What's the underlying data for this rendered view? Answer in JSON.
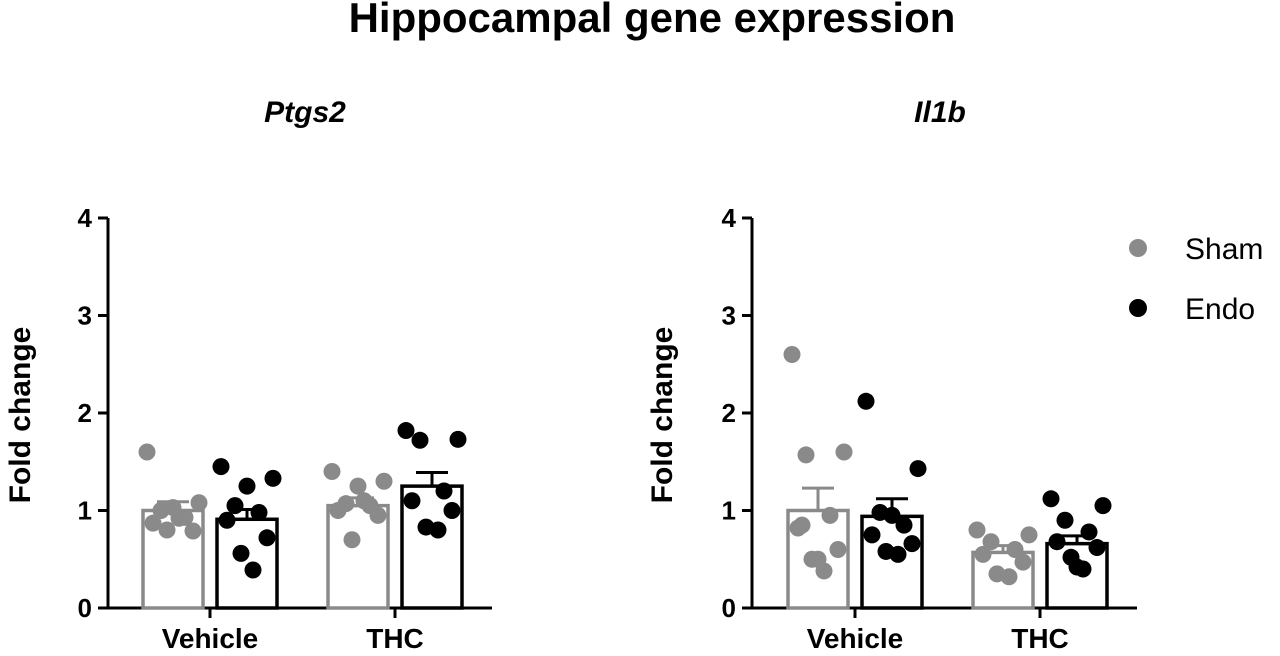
{
  "figure_title": "Hippocampal gene expression",
  "colors": {
    "sham": "#8a8a8a",
    "endo": "#000000"
  },
  "legend": {
    "placement": "top-right",
    "entries": [
      {
        "key": "sham",
        "label": "Sham"
      },
      {
        "key": "endo",
        "label": "Endo"
      }
    ]
  },
  "chart_data": [
    {
      "type": "bar",
      "title": "Ptgs2",
      "ylabel": "Fold change",
      "ylim": [
        0,
        4
      ],
      "yticks": [
        "0",
        "1",
        "2",
        "3",
        "4"
      ],
      "categories": [
        "Vehicle",
        "THC"
      ],
      "grid": false,
      "series": [
        {
          "name": "Sham",
          "key": "sham",
          "values": [
            1.0,
            1.05
          ],
          "sem": [
            0.09,
            0.08
          ],
          "points": [
            [
              1.6,
              1.08,
              1.0,
              0.93,
              0.87,
              0.79,
              0.8,
              0.92,
              1.03
            ],
            [
              1.4,
              1.3,
              1.07,
              1.05,
              1.0,
              0.95,
              0.7,
              1.1,
              1.25
            ]
          ]
        },
        {
          "name": "Endo",
          "key": "endo",
          "values": [
            0.91,
            1.25
          ],
          "sem": [
            0.1,
            0.14
          ],
          "points": [
            [
              1.45,
              1.33,
              1.05,
              0.98,
              0.9,
              0.72,
              0.56,
              0.39,
              1.25
            ],
            [
              1.82,
              1.73,
              1.72,
              1.2,
              1.1,
              1.0,
              0.83,
              0.8
            ]
          ]
        }
      ]
    },
    {
      "type": "bar",
      "title": "Il1b",
      "ylabel": "Fold change",
      "ylim": [
        0,
        4
      ],
      "yticks": [
        "0",
        "1",
        "2",
        "3",
        "4"
      ],
      "categories": [
        "Vehicle",
        "THC"
      ],
      "grid": false,
      "series": [
        {
          "name": "Sham",
          "key": "sham",
          "values": [
            1.0,
            0.57
          ],
          "sem": [
            0.23,
            0.07
          ],
          "points": [
            [
              2.6,
              1.6,
              1.57,
              0.95,
              0.82,
              0.6,
              0.5,
              0.38,
              0.5,
              0.85
            ],
            [
              0.8,
              0.75,
              0.68,
              0.6,
              0.55,
              0.47,
              0.35,
              0.32
            ]
          ]
        },
        {
          "name": "Endo",
          "key": "endo",
          "values": [
            0.94,
            0.66
          ],
          "sem": [
            0.18,
            0.08
          ],
          "points": [
            [
              2.12,
              1.43,
              0.98,
              0.85,
              0.75,
              0.66,
              0.58,
              0.55,
              0.95
            ],
            [
              1.12,
              1.05,
              0.9,
              0.78,
              0.68,
              0.62,
              0.52,
              0.4,
              0.42
            ]
          ]
        }
      ]
    }
  ]
}
